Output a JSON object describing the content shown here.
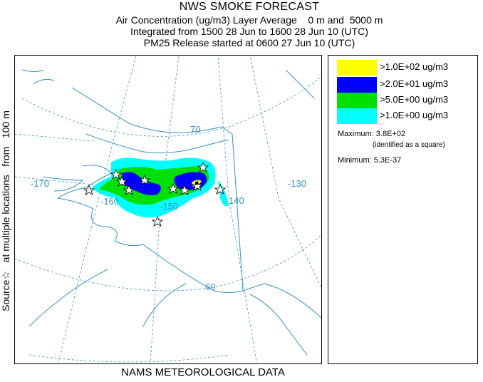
{
  "title": {
    "main": "NWS SMOKE FORECAST",
    "line2": "Air Concentration (ug/m3) Layer Average    0 m and  5000 m",
    "line3": "Integrated from 1500 28 Jun to 1600 28 Jun 10 (UTC)",
    "line4": "PM25 Release started at 0600 27 Jun 10 (UTC)"
  },
  "side_label": "Source☆   at multiple locations   from   100 m",
  "footer": "NAMS METEOROLOGICAL DATA",
  "legend": {
    "entries": [
      {
        "label": ">1.0E+02 ug/m3",
        "color": "#ffff00"
      },
      {
        "label": ">2.0E+01 ug/m3",
        "color": "#0000ff"
      },
      {
        "label": ">5.0E+00 ug/m3",
        "color": "#00e000"
      },
      {
        "label": ">1.0E+00 ug/m3",
        "color": "#00ffff"
      }
    ],
    "maximum": "Maximum: 3.8E+02",
    "maximum_note": "(identified as a square)",
    "minimum": "Minimum: 5.3E-37"
  },
  "map": {
    "longitude_labels": [
      "-170",
      "-160",
      "-150",
      "140",
      "-130"
    ],
    "latitude_labels": [
      "70",
      "60"
    ],
    "colors": {
      "coast": "#3a8fc0",
      "grid": "#3a8fc0"
    }
  }
}
